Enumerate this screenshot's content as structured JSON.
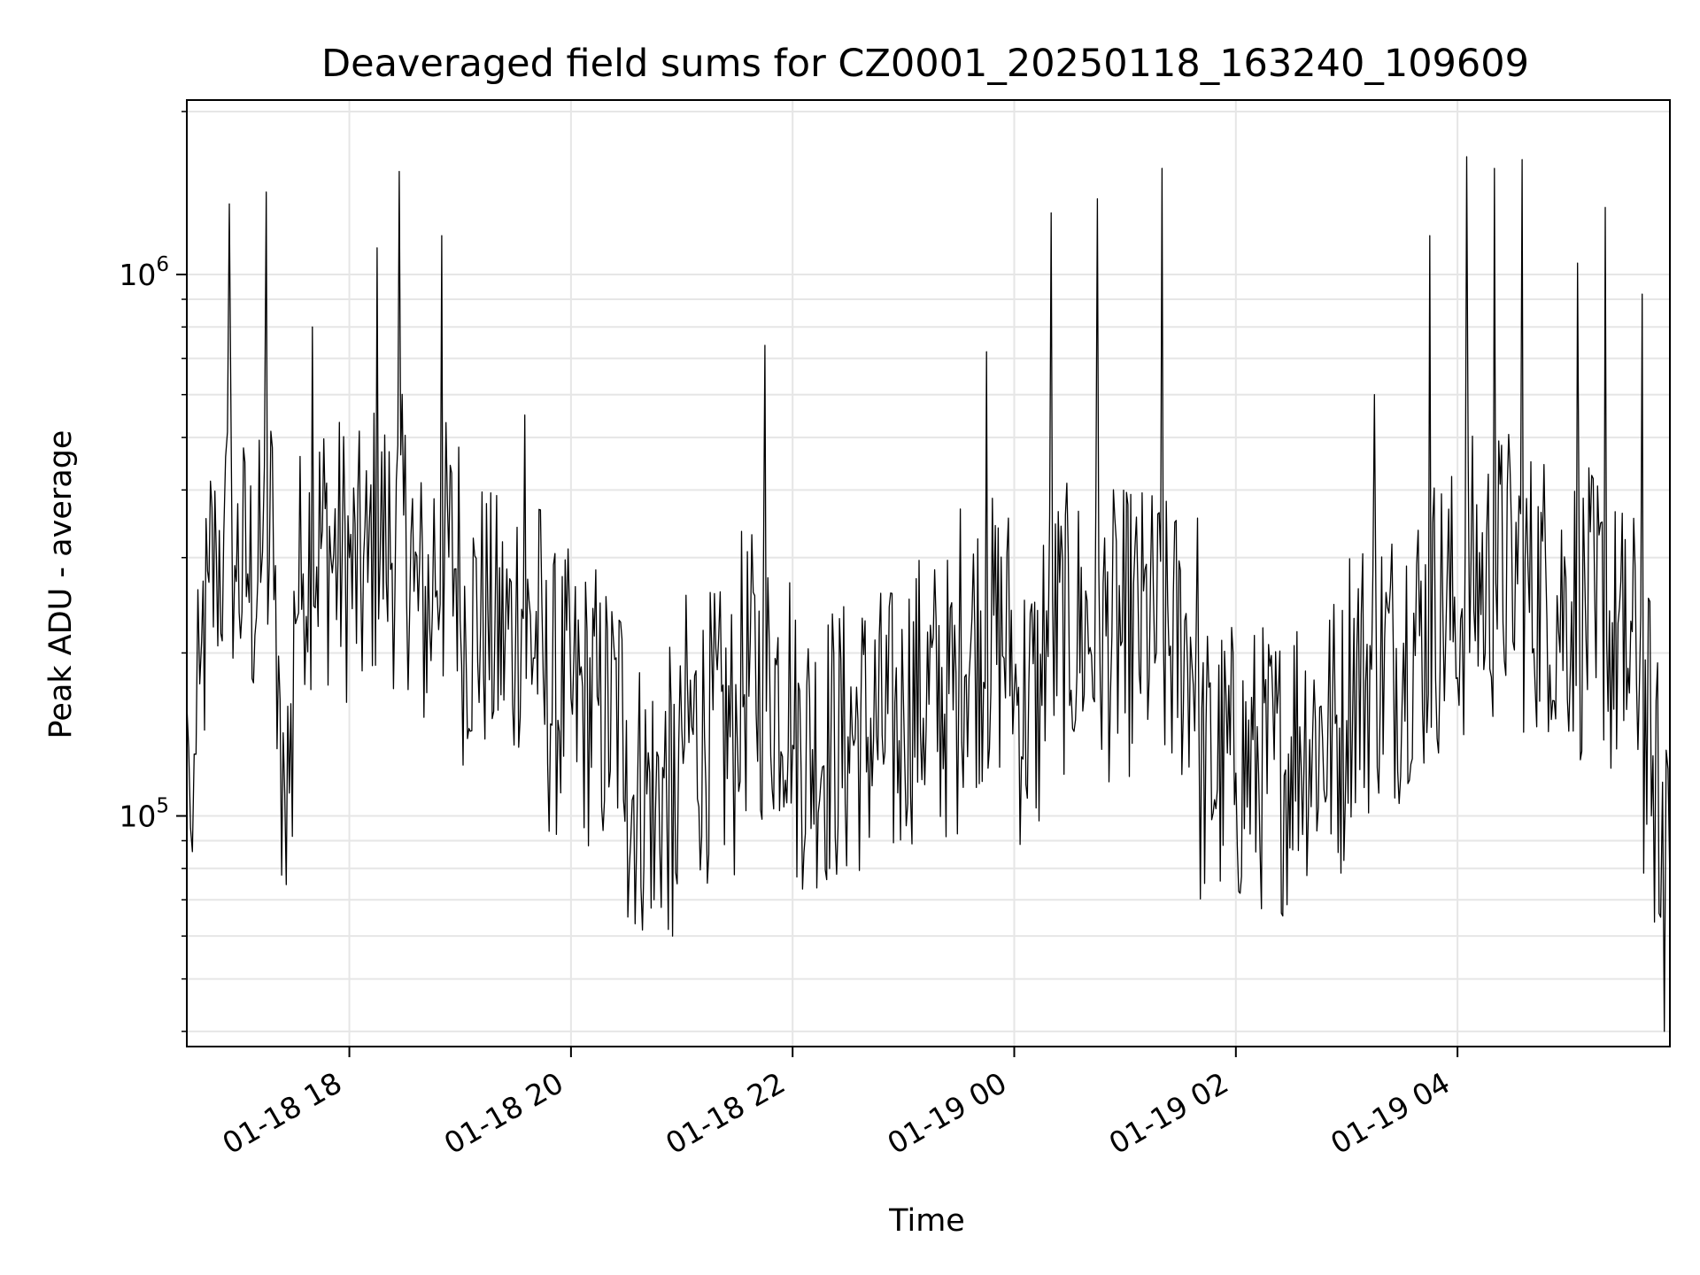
{
  "chart_data": {
    "type": "line",
    "title": "Deaveraged field sums for CZ0001_20250118_163240_109609",
    "xlabel": "Time",
    "ylabel": "Peak ADU - average",
    "yscale": "log",
    "ylim": [
      37500,
      2100000
    ],
    "xlim": [
      "2025-01-18 16:32",
      "2025-01-19 05:55"
    ],
    "grid": true,
    "line_color": "#000000",
    "grid_color": "#e6e6e6",
    "x_ticks": [
      {
        "value": "2025-01-18 18:00",
        "label": "01-18 18"
      },
      {
        "value": "2025-01-18 20:00",
        "label": "01-18 20"
      },
      {
        "value": "2025-01-18 22:00",
        "label": "01-18 22"
      },
      {
        "value": "2025-01-19 00:00",
        "label": "01-19 00"
      },
      {
        "value": "2025-01-19 02:00",
        "label": "01-19 02"
      },
      {
        "value": "2025-01-19 04:00",
        "label": "01-19 04"
      }
    ],
    "y_ticks": [
      {
        "value": 100000,
        "base": "10",
        "exp": "5"
      },
      {
        "value": 1000000,
        "base": "10",
        "exp": "6"
      }
    ],
    "series": [
      {
        "points": [
          [
            "2025-01-18 16:32",
            160000
          ],
          [
            "2025-01-18 16:34",
            95000
          ],
          [
            "2025-01-18 16:37",
            130000
          ],
          [
            "2025-01-18 16:40",
            210000
          ],
          [
            "2025-01-18 16:44",
            270000
          ],
          [
            "2025-01-18 16:48",
            300000
          ],
          [
            "2025-01-18 16:52",
            330000
          ],
          [
            "2025-01-18 16:55",
            1350000
          ],
          [
            "2025-01-18 16:58",
            290000
          ],
          [
            "2025-01-18 17:05",
            280000
          ],
          [
            "2025-01-18 17:12",
            270000
          ],
          [
            "2025-01-18 17:15",
            1420000
          ],
          [
            "2025-01-18 17:20",
            290000
          ],
          [
            "2025-01-18 17:25",
            110000
          ],
          [
            "2025-01-18 17:30",
            260000
          ],
          [
            "2025-01-18 17:35",
            280000
          ],
          [
            "2025-01-18 17:40",
            800000
          ],
          [
            "2025-01-18 17:50",
            300000
          ],
          [
            "2025-01-18 18:00",
            300000
          ],
          [
            "2025-01-18 18:10",
            270000
          ],
          [
            "2025-01-18 18:15",
            1120000
          ],
          [
            "2025-01-18 18:20",
            270000
          ],
          [
            "2025-01-18 18:27",
            1550000
          ],
          [
            "2025-01-18 18:35",
            260000
          ],
          [
            "2025-01-18 18:45",
            240000
          ],
          [
            "2025-01-18 18:50",
            1180000
          ],
          [
            "2025-01-18 19:00",
            230000
          ],
          [
            "2025-01-18 19:15",
            240000
          ],
          [
            "2025-01-18 19:30",
            210000
          ],
          [
            "2025-01-18 19:35",
            550000
          ],
          [
            "2025-01-18 19:45",
            180000
          ],
          [
            "2025-01-18 20:00",
            165000
          ],
          [
            "2025-01-18 20:15",
            160000
          ],
          [
            "2025-01-18 20:30",
            150000
          ],
          [
            "2025-01-18 20:45",
            70000
          ],
          [
            "2025-01-18 20:55",
            60000
          ],
          [
            "2025-01-18 21:00",
            145000
          ],
          [
            "2025-01-18 21:30",
            140000
          ],
          [
            "2025-01-18 21:45",
            740000
          ],
          [
            "2025-01-18 22:00",
            135000
          ],
          [
            "2025-01-18 22:30",
            140000
          ],
          [
            "2025-01-18 23:00",
            165000
          ],
          [
            "2025-01-18 23:30",
            170000
          ],
          [
            "2025-01-18 23:45",
            720000
          ],
          [
            "2025-01-19 00:00",
            170000
          ],
          [
            "2025-01-19 00:15",
            160000
          ],
          [
            "2025-01-19 00:20",
            1300000
          ],
          [
            "2025-01-19 00:30",
            160000
          ],
          [
            "2025-01-19 00:45",
            1380000
          ],
          [
            "2025-01-19 01:00",
            155000
          ],
          [
            "2025-01-19 01:20",
            1570000
          ],
          [
            "2025-01-19 01:40",
            145000
          ],
          [
            "2025-01-19 02:00",
            120000
          ],
          [
            "2025-01-19 02:30",
            140000
          ],
          [
            "2025-01-19 03:00",
            150000
          ],
          [
            "2025-01-19 03:15",
            600000
          ],
          [
            "2025-01-19 03:30",
            160000
          ],
          [
            "2025-01-19 03:45",
            1180000
          ],
          [
            "2025-01-19 04:00",
            180000
          ],
          [
            "2025-01-19 04:05",
            1650000
          ],
          [
            "2025-01-19 04:15",
            200000
          ],
          [
            "2025-01-19 04:20",
            1570000
          ],
          [
            "2025-01-19 04:30",
            210000
          ],
          [
            "2025-01-19 04:35",
            1630000
          ],
          [
            "2025-01-19 04:50",
            190000
          ],
          [
            "2025-01-19 05:05",
            1050000
          ],
          [
            "2025-01-19 05:15",
            180000
          ],
          [
            "2025-01-19 05:20",
            1330000
          ],
          [
            "2025-01-19 05:30",
            150000
          ],
          [
            "2025-01-19 05:40",
            920000
          ],
          [
            "2025-01-19 05:45",
            100000
          ],
          [
            "2025-01-19 05:50",
            65000
          ],
          [
            "2025-01-19 05:52",
            40000
          ],
          [
            "2025-01-19 05:55",
            75000
          ]
        ]
      }
    ]
  }
}
